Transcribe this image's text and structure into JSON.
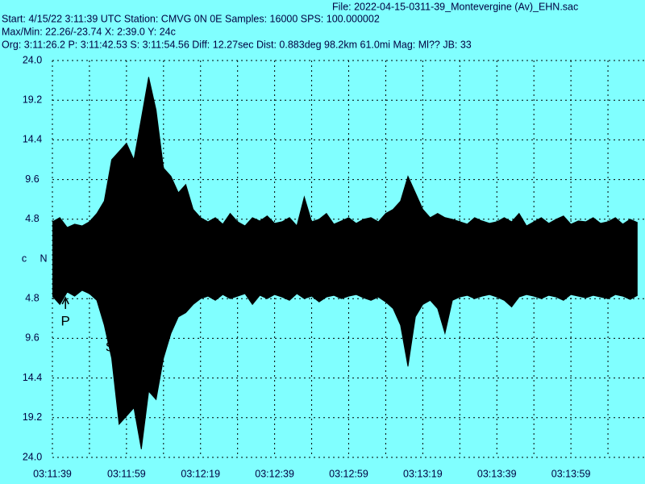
{
  "chart_data": {
    "type": "seismogram",
    "file": "File: 2022-04-15-0311-39_Montevergine (Av)_EHN.sac",
    "header_lines": [
      "Start: 4/15/22  3:11:39 UTC Station: CMVG 0N 0E Samples: 16000  SPS: 100.000002",
      "Max/Min: 22.26/-23.74 X: 2:39.0 Y: 24c",
      "Org: 3:11:26.2 P: 3:11:42.53 S: 3:11:54.56 Diff: 12.27sec Dist: 0.883deg 98.2km 61.0mi  Mag: Ml?? JB: 33"
    ],
    "center_labels": [
      "c",
      "N"
    ],
    "xlim": [
      0,
      160
    ],
    "ylim": [
      -24,
      24
    ],
    "xticks": [
      {
        "value": 0,
        "label": "03:11:39"
      },
      {
        "value": 20,
        "label": "03:11:59"
      },
      {
        "value": 40,
        "label": "03:12:19"
      },
      {
        "value": 60,
        "label": "03:12:39"
      },
      {
        "value": 80,
        "label": "03:12:59"
      },
      {
        "value": 100,
        "label": "03:13:19"
      },
      {
        "value": 120,
        "label": "03:13:39"
      },
      {
        "value": 140,
        "label": "03:13:59"
      }
    ],
    "xminorticks": [
      10,
      30,
      50,
      70,
      90,
      110,
      130,
      150
    ],
    "yticks": [
      {
        "value": 24,
        "label": "24.0"
      },
      19.2,
      14.4,
      9.6,
      4.8,
      {
        "value": -4.8,
        "label": "4.8"
      },
      {
        "value": -9.6,
        "label": "9.6"
      },
      {
        "value": -14.4,
        "label": "14.4"
      },
      {
        "value": -19.2,
        "label": "19.2"
      },
      {
        "value": -24,
        "label": "24.0"
      }
    ],
    "grid": true,
    "picks": [
      {
        "label": "P",
        "time": 3.53
      },
      {
        "label": "S",
        "time": 15.56
      }
    ],
    "x": [
      0,
      2,
      4,
      6,
      8,
      10,
      12,
      14,
      16,
      18,
      20,
      22,
      24,
      26,
      28,
      30,
      32,
      34,
      36,
      38,
      40,
      42,
      44,
      46,
      48,
      50,
      52,
      54,
      56,
      58,
      60,
      62,
      64,
      66,
      68,
      70,
      72,
      74,
      76,
      78,
      80,
      82,
      84,
      86,
      88,
      90,
      92,
      94,
      96,
      98,
      100,
      102,
      104,
      106,
      108,
      110,
      112,
      114,
      116,
      118,
      120,
      122,
      124,
      126,
      128,
      130,
      132,
      134,
      136,
      138,
      140,
      142,
      144,
      146,
      148,
      150,
      152,
      154,
      156,
      158
    ],
    "series": [
      {
        "color": "#000000",
        "values": [
          4.5,
          5,
          3.8,
          4.2,
          4,
          4.5,
          5.5,
          7,
          12,
          13,
          14,
          12,
          17,
          22,
          18,
          11,
          10,
          8,
          9,
          6,
          5,
          4.5,
          5,
          4.2,
          5.5,
          4.5,
          4,
          5,
          4.6,
          5.2,
          4.3,
          4.5,
          5,
          4,
          7.5,
          4.5,
          4.8,
          5.5,
          4.2,
          4.6,
          5,
          4.3,
          4.8,
          5,
          4.5,
          5.5,
          6,
          7,
          10,
          8,
          6,
          5,
          5.5,
          5,
          4.8,
          4.5,
          4.2,
          5,
          4.6,
          4.3,
          4.5,
          5,
          4.5,
          5.5,
          4,
          4.5,
          5,
          4.3,
          4.8,
          5.2,
          4.2,
          4.6,
          4.5,
          5,
          4.3,
          4.5,
          5,
          4.2,
          4.8,
          4.4
        ]
      },
      {
        "color": "#000000",
        "values": [
          -4.5,
          -5.5,
          -4,
          -4.5,
          -3.8,
          -4.2,
          -5,
          -8,
          -12,
          -20,
          -19,
          -18,
          -23,
          -16,
          -17,
          -12,
          -9,
          -7,
          -6.5,
          -5.5,
          -4.8,
          -4.5,
          -5,
          -4.3,
          -4.8,
          -4.5,
          -4.2,
          -5.5,
          -4.4,
          -4.8,
          -4.3,
          -4.6,
          -5,
          -4.2,
          -4.8,
          -4.5,
          -5.2,
          -4.6,
          -4.4,
          -4.8,
          -4.5,
          -4.3,
          -4.7,
          -5,
          -4.6,
          -5.2,
          -6,
          -8,
          -13,
          -7,
          -5.5,
          -5,
          -6,
          -9,
          -5,
          -4.6,
          -4.4,
          -4.8,
          -4.5,
          -4.3,
          -4.6,
          -5,
          -5.8,
          -4.6,
          -4.3,
          -4.5,
          -4.8,
          -4.4,
          -4.6,
          -5,
          -4.3,
          -4.5,
          -4.7,
          -4.4,
          -4.6,
          -4.8,
          -4.3,
          -4.5,
          -4.9,
          -4.4
        ]
      }
    ]
  }
}
